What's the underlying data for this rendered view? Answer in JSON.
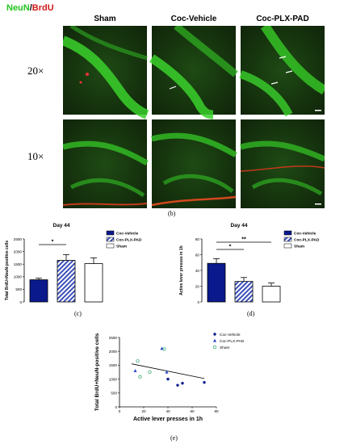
{
  "figure": {
    "stain_label": {
      "neun": "NeuN",
      "sep": "/",
      "brdu": "BrdU"
    },
    "columns": [
      "Sham",
      "Coc-Vehicle",
      "Coc-PLX-PAD"
    ],
    "rows": [
      "20×",
      "10×"
    ],
    "panel_b_letter": "(b)",
    "panel_c_letter": "(c)",
    "panel_d_letter": "(d)",
    "panel_e_letter": "(e)",
    "colors": {
      "neun": "#23c51e",
      "brdu": "#d11a1a",
      "vehicle": "#0a1a8c",
      "plx": "#3b4fb8"
    }
  },
  "chart_data": [
    {
      "id": "c",
      "type": "bar",
      "title": "Day 44",
      "ylabel": "Total BrdU+NeuN-positive cells",
      "xlabel": "",
      "categories": [
        "Coc-Vehicle",
        "Coc-PLX-PAD",
        "Sham"
      ],
      "values": [
        880,
        1650,
        1520
      ],
      "errors": [
        60,
        230,
        230
      ],
      "ylim": [
        0,
        2500
      ],
      "yticks": [
        0,
        500,
        1000,
        1500,
        2000,
        2500
      ],
      "legend": [
        "Coc-Vehicle",
        "Coc-PLX-PAD",
        "Sham"
      ],
      "legend_position": "right",
      "significance": [
        {
          "pair": [
            0,
            1
          ],
          "label": "*"
        }
      ]
    },
    {
      "id": "d",
      "type": "bar",
      "title": "Day 44",
      "ylabel": "Active lever presses in 1h",
      "xlabel": "",
      "categories": [
        "Coc-Vehicle",
        "Coc-PLX-PAD",
        "Sham"
      ],
      "values": [
        49,
        26,
        20
      ],
      "errors": [
        6,
        5,
        4
      ],
      "ylim": [
        0,
        80
      ],
      "yticks": [
        0,
        20,
        40,
        60,
        80
      ],
      "legend": [
        "Coc-Vehicle",
        "Coc-PLX-PAD",
        "Sham"
      ],
      "legend_position": "right",
      "significance": [
        {
          "pair": [
            0,
            1
          ],
          "label": "*"
        },
        {
          "pair": [
            0,
            2
          ],
          "label": "**"
        }
      ]
    },
    {
      "id": "e",
      "type": "scatter",
      "title": "",
      "xlabel": "Active lever presses in 1h",
      "ylabel": "Total BrdU+NeuN-positive cells",
      "xlim": [
        0,
        80
      ],
      "ylim": [
        0,
        2500
      ],
      "xticks": [
        0,
        20,
        40,
        60,
        80
      ],
      "yticks": [
        0,
        500,
        1000,
        1500,
        2000,
        2500
      ],
      "legend_position": "top-right",
      "series": [
        {
          "name": "Coc-Vehicle",
          "marker": "dot",
          "points": [
            [
              40,
              1000
            ],
            [
              48,
              780
            ],
            [
              52,
              850
            ],
            [
              70,
              880
            ]
          ]
        },
        {
          "name": "Coc-PLX-PAD",
          "marker": "triangle",
          "points": [
            [
              13,
              1300
            ],
            [
              35,
              2100
            ],
            [
              39,
              1250
            ]
          ]
        },
        {
          "name": "Sham",
          "marker": "circle",
          "points": [
            [
              15,
              1650
            ],
            [
              17,
              1080
            ],
            [
              25,
              1250
            ],
            [
              37,
              2080
            ]
          ]
        }
      ],
      "trendline": {
        "from": [
          10,
          1550
        ],
        "to": [
          70,
          1020
        ]
      }
    }
  ]
}
